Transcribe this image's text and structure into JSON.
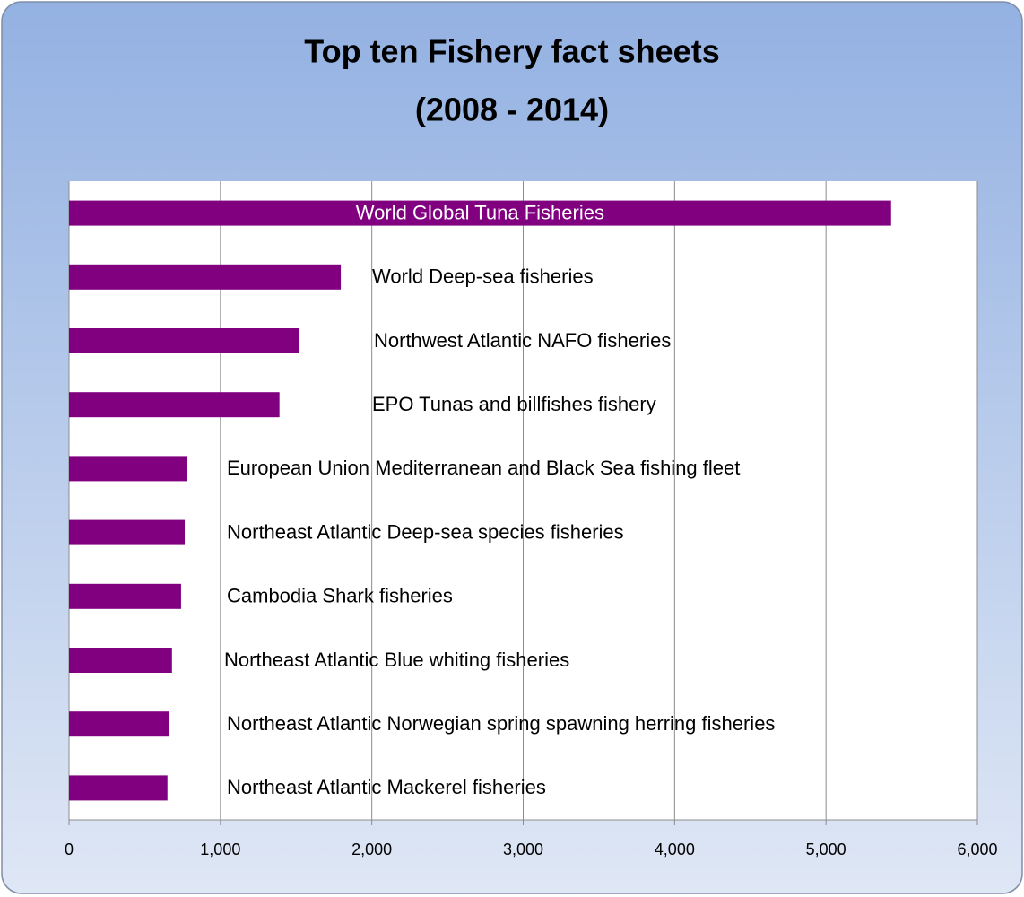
{
  "chart_data": {
    "type": "bar",
    "orientation": "horizontal",
    "title": "Top ten Fishery fact sheets",
    "subtitle": "(2008 - 2014)",
    "categories": [
      "World Global Tuna Fisheries",
      "World Deep-sea fisheries",
      "Northwest Atlantic NAFO fisheries",
      "EPO Tunas and billfishes fishery",
      "European Union Mediterranean and Black Sea fishing fleet",
      "Northeast Atlantic Deep-sea species fisheries",
      "Cambodia Shark fisheries",
      "Northeast Atlantic Blue whiting fisheries",
      "Northeast Atlantic Norwegian spring spawning herring fisheries",
      "Northeast Atlantic Mackerel fisheries"
    ],
    "values": [
      5430,
      1795,
      1520,
      1390,
      776,
      764,
      740,
      680,
      660,
      650
    ],
    "color": "#800080",
    "xlim": [
      0,
      6000
    ],
    "xticks": [
      0,
      {
        "value": 1000,
        "label": "1,000"
      },
      {
        "value": 2000,
        "label": "2,000"
      },
      {
        "value": 3000,
        "label": "3,000"
      },
      {
        "value": 4000,
        "label": "4,000"
      },
      {
        "value": 5000,
        "label": "5,000"
      },
      {
        "value": 6000,
        "label": "6,000"
      }
    ],
    "grid": true
  }
}
